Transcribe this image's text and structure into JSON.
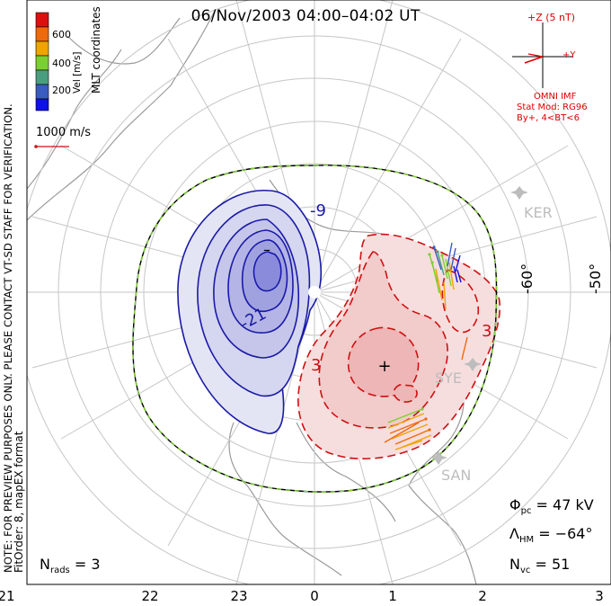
{
  "title": "06/Nov/2003 04:00–04:02 UT",
  "coord_label": "MLT coordinates",
  "colorbar": {
    "label": "Vel [m/s]",
    "ticks": [
      "600",
      "400",
      "200"
    ],
    "colors": [
      "#dd1010",
      "#ee6a0f",
      "#f0a400",
      "#7ccf30",
      "#4a9e80",
      "#3a5cc0",
      "#1010e8"
    ]
  },
  "velocity_scale": "1000 m/s",
  "imf": {
    "z_label": "+Z (5 nT)",
    "y_label": "+Y",
    "source": "OMNI IMF",
    "model": "Stat Mod: RG96",
    "condition": "By+, 4<BT<6"
  },
  "stations": [
    "KER",
    "SYE",
    "SAN"
  ],
  "latitude_labels": [
    "-60°",
    "-50°"
  ],
  "contour_labels": [
    "-9",
    "-21",
    "3",
    "3"
  ],
  "extrema_markers": [
    "–",
    "+"
  ],
  "note": "NOTE: FOR PREVIEW PURPOSES ONLY. PLEASE CONTACT VT-SD STAFF FOR VERIFICATION.",
  "fit_info": "FitOrder: 8, mapEX format",
  "stats": {
    "phi_symbol": "Φ",
    "phi_sub": "pc",
    "phi_value": "= 47 kV",
    "lambda_symbol": "Λ",
    "lambda_sub": "HM",
    "lambda_value": "= −64°",
    "nvc_symbol": "N",
    "nvc_sub": "vc",
    "nvc_value": "= 51",
    "nrads_symbol": "N",
    "nrads_sub": "rads",
    "nrads_value": "= 3"
  },
  "mlt_ticks": [
    "21",
    "22",
    "23",
    "0",
    "1",
    "2",
    "3"
  ]
}
